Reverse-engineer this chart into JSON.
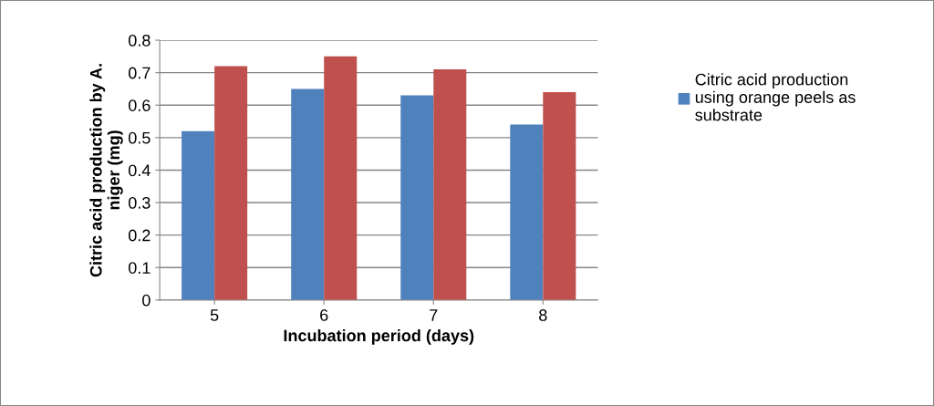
{
  "chart_data": {
    "type": "bar",
    "xlabel": "Incubation period (days)",
    "ylabel": "Citric acid production by A.\nniger (mg)",
    "categories": [
      "5",
      "6",
      "7",
      "8"
    ],
    "series": [
      {
        "name": "Citric acid production\nusing orange peels as\nsubstrate",
        "color": "#4f81bd",
        "values": [
          0.52,
          0.65,
          0.63,
          0.54
        ]
      },
      {
        "color": "#c0504d",
        "values": [
          0.72,
          0.75,
          0.71,
          0.64
        ]
      }
    ],
    "ylim": [
      0,
      0.8
    ],
    "yticks": [
      0,
      0.1,
      0.2,
      0.3,
      0.4,
      0.5,
      0.6,
      0.7,
      0.8
    ],
    "grid": "y",
    "legend": "right"
  }
}
